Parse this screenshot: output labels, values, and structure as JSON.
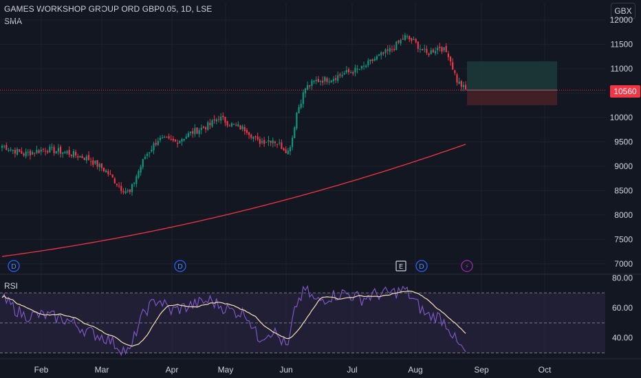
{
  "header": {
    "title": "GAMES WORKSHOP GROUP ORD GBP0.05, 1D, LSE",
    "sma_label": "SMA",
    "currency": "GBX"
  },
  "last_price_tag": "10560",
  "rsi_label": "RSI",
  "event_markers": [
    {
      "kind": "dividend",
      "label": "D",
      "x_date": "Jan"
    },
    {
      "kind": "dividend",
      "label": "D",
      "x_date": "Apr"
    },
    {
      "kind": "earnings",
      "label": "E",
      "x_date": "Jul"
    },
    {
      "kind": "dividend",
      "label": "D",
      "x_date": "Aug"
    },
    {
      "kind": "split-flash",
      "label": "⚡",
      "x_date": "Aug"
    }
  ],
  "colors": {
    "background": "#131722",
    "up": "#089981",
    "down": "#f23645",
    "sma": "#f23645",
    "rsi": "#7e57c2",
    "rsi_ma": "#f7e4b5",
    "rsi_band": "#2a2443",
    "dividend": "#2962ff",
    "earnings": "#d1d4dc",
    "flash": "#9c27b0",
    "target_zone": "#1b3b3a",
    "stop_zone": "#4a2127"
  },
  "chart_data": [
    {
      "type": "candlestick",
      "title": "GAMES WORKSHOP GROUP ORD GBP0.05, 1D, LSE",
      "ylim": [
        6800,
        12350
      ],
      "y_ticks": [
        7000,
        7500,
        8000,
        8500,
        9000,
        9500,
        10000,
        10500,
        11000,
        11500,
        12000
      ],
      "x_ticks": [
        "Feb",
        "Mar",
        "Apr",
        "May",
        "Jun",
        "Jul",
        "Aug",
        "Sep",
        "Oct"
      ],
      "last_price": 10560,
      "close_anchors": [
        [
          0,
          9420
        ],
        [
          10,
          9250
        ],
        [
          20,
          9350
        ],
        [
          30,
          9280
        ],
        [
          40,
          9150
        ],
        [
          48,
          8900
        ],
        [
          55,
          8550
        ],
        [
          59,
          8450
        ],
        [
          62,
          8800
        ],
        [
          66,
          9200
        ],
        [
          72,
          9550
        ],
        [
          80,
          9500
        ],
        [
          88,
          9700
        ],
        [
          96,
          9850
        ],
        [
          100,
          10000
        ],
        [
          106,
          9850
        ],
        [
          113,
          9750
        ],
        [
          118,
          9500
        ],
        [
          125,
          9550
        ],
        [
          132,
          9300
        ],
        [
          134,
          9600
        ],
        [
          136,
          10100
        ],
        [
          140,
          10600
        ],
        [
          145,
          10750
        ],
        [
          152,
          10800
        ],
        [
          158,
          10900
        ],
        [
          166,
          11000
        ],
        [
          172,
          11200
        ],
        [
          180,
          11400
        ],
        [
          186,
          11650
        ],
        [
          190,
          11550
        ],
        [
          196,
          11300
        ],
        [
          202,
          11450
        ],
        [
          206,
          11300
        ],
        [
          210,
          10750
        ],
        [
          214,
          10560
        ]
      ],
      "sma": {
        "name": "SMA",
        "start": 7150,
        "end": 9450
      },
      "position": {
        "entry": 10560,
        "target": 11150,
        "stop": 10250
      }
    },
    {
      "type": "line",
      "title": "RSI",
      "ylim": [
        27,
        82
      ],
      "y_ticks": [
        40.0,
        60.0,
        80.0
      ],
      "bands": [
        30,
        50,
        70
      ],
      "rsi_anchors": [
        [
          0,
          66
        ],
        [
          10,
          55
        ],
        [
          20,
          55
        ],
        [
          30,
          52
        ],
        [
          40,
          44
        ],
        [
          48,
          40
        ],
        [
          55,
          33
        ],
        [
          59,
          30
        ],
        [
          62,
          45
        ],
        [
          66,
          58
        ],
        [
          72,
          66
        ],
        [
          78,
          58
        ],
        [
          88,
          62
        ],
        [
          96,
          65
        ],
        [
          100,
          62
        ],
        [
          106,
          58
        ],
        [
          113,
          56
        ],
        [
          118,
          40
        ],
        [
          125,
          45
        ],
        [
          132,
          33
        ],
        [
          134,
          50
        ],
        [
          136,
          63
        ],
        [
          140,
          72
        ],
        [
          145,
          64
        ],
        [
          152,
          68
        ],
        [
          158,
          70
        ],
        [
          166,
          66
        ],
        [
          172,
          69
        ],
        [
          180,
          70
        ],
        [
          186,
          72
        ],
        [
          190,
          65
        ],
        [
          196,
          55
        ],
        [
          202,
          54
        ],
        [
          206,
          48
        ],
        [
          210,
          36
        ],
        [
          214,
          30
        ]
      ]
    }
  ]
}
